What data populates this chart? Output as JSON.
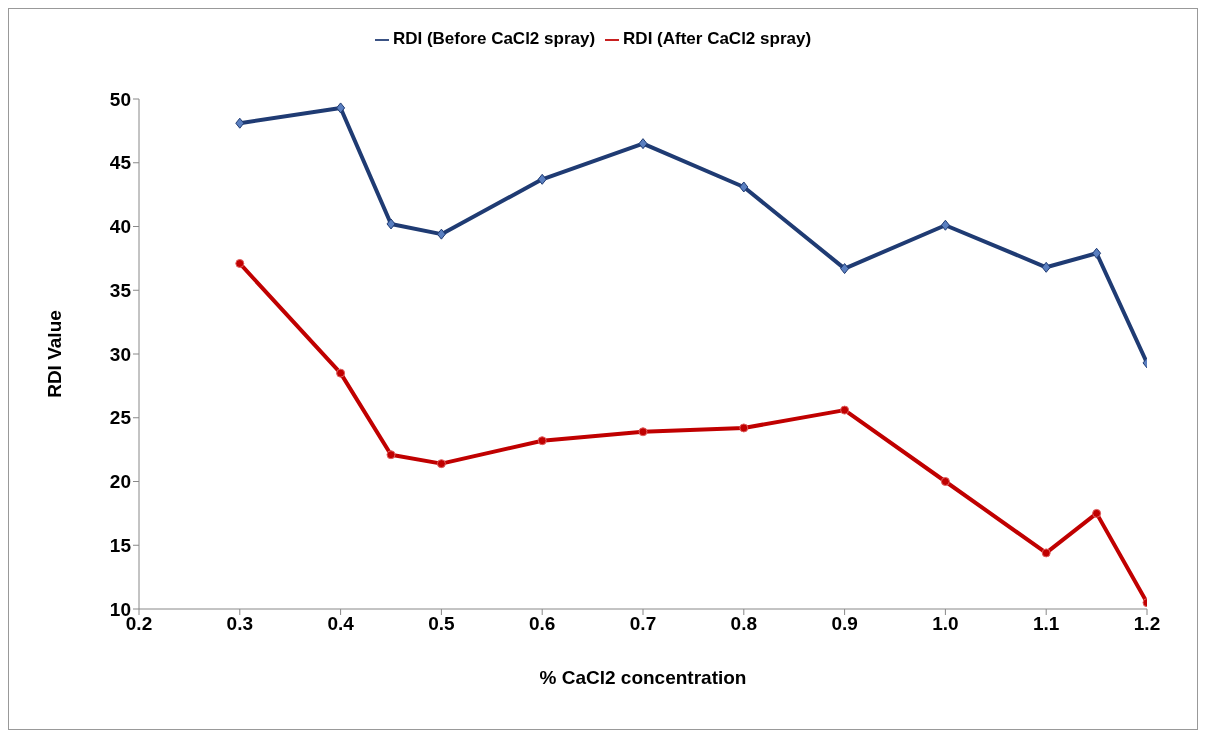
{
  "chart_data": {
    "type": "line",
    "xlabel": "% CaCl2 concentration",
    "ylabel": "RDI Value",
    "x": [
      0.3,
      0.4,
      0.45,
      0.5,
      0.6,
      0.7,
      0.8,
      0.9,
      1.0,
      1.1,
      1.15,
      1.2
    ],
    "series": [
      {
        "name": "RDI (Before CaCl2 spray)",
        "color": "#1f3b73",
        "marker": "diamond",
        "values": [
          48.1,
          49.3,
          40.2,
          39.4,
          43.7,
          46.5,
          43.1,
          36.7,
          40.1,
          36.8,
          37.9,
          29.3
        ]
      },
      {
        "name": "RDI (After CaCl2 spray)",
        "color": "#c00000",
        "marker": "circle",
        "values": [
          37.1,
          28.5,
          22.1,
          21.4,
          23.2,
          23.9,
          24.2,
          25.6,
          20.0,
          14.4,
          17.5,
          10.5
        ]
      }
    ],
    "xlim": [
      0.2,
      1.2
    ],
    "xticks": [
      0.2,
      0.3,
      0.4,
      0.5,
      0.6,
      0.7,
      0.8,
      0.9,
      {
        "value": 1.0,
        "label": "1.0"
      },
      1.1,
      1.2
    ],
    "ylim": [
      10,
      50
    ],
    "yticks": [
      10,
      15,
      20,
      25,
      30,
      35,
      40,
      45,
      50
    ],
    "grid": false,
    "legend": "top",
    "line_style": "solid"
  }
}
